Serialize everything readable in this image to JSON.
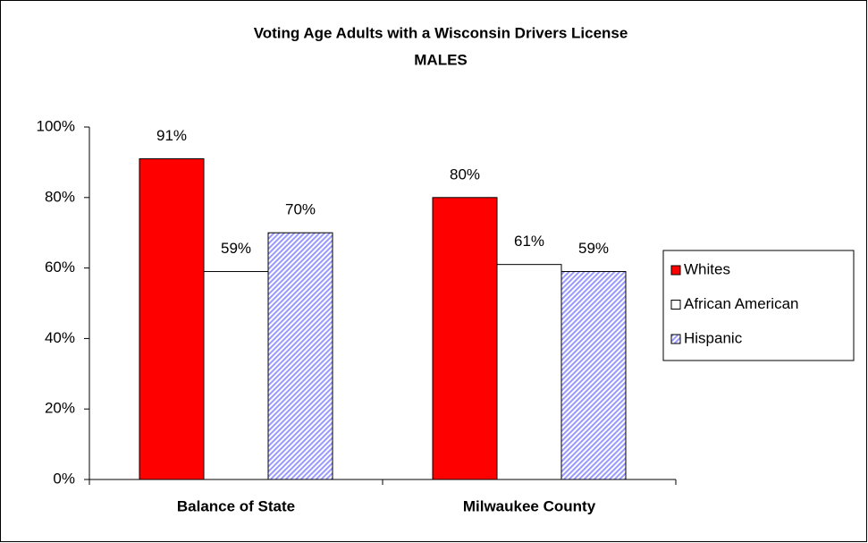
{
  "chart_data": {
    "type": "bar",
    "title": "Voting Age Adults with a Wisconsin Drivers License",
    "subtitle": "MALES",
    "categories": [
      "Balance of State",
      "Milwaukee County"
    ],
    "series": [
      {
        "name": "Whites",
        "color": "#ff0000",
        "values": [
          91,
          80
        ],
        "value_labels": [
          "91%",
          "80%"
        ]
      },
      {
        "name": "African American",
        "color": "#ffffff",
        "values": [
          59,
          61
        ],
        "value_labels": [
          "59%",
          "61%"
        ]
      },
      {
        "name": "Hispanic",
        "color": "#9999ff",
        "hatch": true,
        "values": [
          70,
          59
        ],
        "value_labels": [
          "70%",
          "59%"
        ]
      }
    ],
    "ylim": [
      0,
      100
    ],
    "yticks": [
      {
        "value": 0,
        "label": "0%"
      },
      {
        "value": 20,
        "label": "20%"
      },
      {
        "value": 40,
        "label": "40%"
      },
      {
        "value": 60,
        "label": "60%"
      },
      {
        "value": 80,
        "label": "80%"
      },
      {
        "value": 100,
        "label": "100%"
      }
    ],
    "grid": false,
    "legend": "right"
  }
}
